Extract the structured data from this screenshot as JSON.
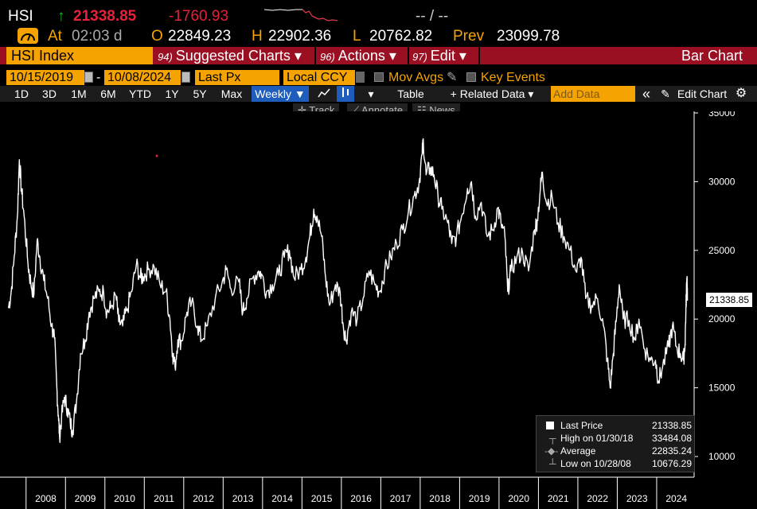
{
  "header": {
    "ticker": "HSI",
    "arrow": "↑",
    "last": "21338.85",
    "change": "-1760.93",
    "bidask": "-- / --",
    "at_label": "At",
    "time": "02:03 d",
    "open_label": "O",
    "open": "22849.23",
    "high_label": "H",
    "high": "22902.36",
    "low_label": "L",
    "low": "20762.82",
    "prev_label": "Prev",
    "prev": "23099.78"
  },
  "menubar": {
    "security": "HSI Index",
    "suggested_num": "94)",
    "suggested": "Suggested Charts",
    "actions_num": "96)",
    "actions": "Actions",
    "edit_num": "97)",
    "edit": "Edit",
    "title": "Bar Chart",
    "caret": "▾"
  },
  "settings": {
    "start_date": "10/15/2019",
    "dash": "-",
    "end_date": "10/08/2024",
    "field": "Last Px",
    "currency": "Local CCY",
    "mov_avgs": "Mov Avgs",
    "key_events": "Key Events"
  },
  "toolbar": {
    "periods": [
      "1D",
      "3D",
      "1M",
      "6M",
      "YTD",
      "1Y",
      "5Y",
      "Max"
    ],
    "frequency": "Weekly ▼",
    "table": "Table",
    "related": "+ Related Data ▾",
    "add_data": "Add Data",
    "collapse": "«",
    "edit_chart": "Edit Chart",
    "gear": "⚙"
  },
  "subtoolbar": {
    "track": "Track",
    "annotate": "Annotate",
    "news": "News"
  },
  "legend": {
    "rows": [
      {
        "name": "Last Price",
        "value": "21338.85"
      },
      {
        "name": "High on 01/30/18",
        "value": "33484.08"
      },
      {
        "name": "Average",
        "value": "22835.24"
      },
      {
        "name": "Low on 10/28/08",
        "value": "10676.29"
      }
    ]
  },
  "last_marker": "21338.85",
  "chart_data": {
    "type": "line",
    "title": "",
    "xlabel": "",
    "ylabel": "",
    "ylim": [
      9000,
      35500
    ],
    "yticks": [
      10000,
      15000,
      20000,
      25000,
      30000,
      35000
    ],
    "xticks": [
      "2008",
      "2009",
      "2010",
      "2011",
      "2012",
      "2013",
      "2014",
      "2015",
      "2016",
      "2017",
      "2018",
      "2019",
      "2020",
      "2021",
      "2022",
      "2023",
      "2024"
    ],
    "grid": false,
    "color": "#ffffff",
    "series": [
      {
        "values": [
          [
            2007.55,
            20800
          ],
          [
            2007.62,
            21900
          ],
          [
            2007.7,
            24600
          ],
          [
            2007.78,
            27500
          ],
          [
            2007.83,
            31600
          ],
          [
            2007.88,
            29500
          ],
          [
            2007.95,
            27500
          ],
          [
            2008.05,
            24000
          ],
          [
            2008.12,
            22600
          ],
          [
            2008.2,
            21800
          ],
          [
            2008.28,
            25700
          ],
          [
            2008.35,
            24500
          ],
          [
            2008.45,
            22800
          ],
          [
            2008.55,
            21500
          ],
          [
            2008.65,
            19500
          ],
          [
            2008.72,
            18600
          ],
          [
            2008.78,
            15000
          ],
          [
            2008.82,
            13000
          ],
          [
            2008.85,
            11500
          ],
          [
            2008.9,
            12800
          ],
          [
            2008.97,
            14300
          ],
          [
            2009.05,
            13500
          ],
          [
            2009.12,
            12500
          ],
          [
            2009.18,
            11900
          ],
          [
            2009.28,
            14000
          ],
          [
            2009.38,
            17500
          ],
          [
            2009.5,
            18500
          ],
          [
            2009.6,
            20500
          ],
          [
            2009.72,
            21500
          ],
          [
            2009.85,
            22000
          ],
          [
            2009.97,
            21900
          ],
          [
            2010.05,
            20500
          ],
          [
            2010.15,
            20800
          ],
          [
            2010.28,
            21700
          ],
          [
            2010.35,
            19800
          ],
          [
            2010.45,
            19500
          ],
          [
            2010.55,
            20600
          ],
          [
            2010.68,
            22000
          ],
          [
            2010.8,
            24000
          ],
          [
            2010.9,
            23000
          ],
          [
            2010.97,
            23100
          ],
          [
            2011.1,
            23600
          ],
          [
            2011.25,
            23800
          ],
          [
            2011.4,
            22500
          ],
          [
            2011.55,
            22000
          ],
          [
            2011.65,
            20000
          ],
          [
            2011.72,
            17500
          ],
          [
            2011.78,
            16500
          ],
          [
            2011.85,
            18500
          ],
          [
            2011.95,
            18400
          ],
          [
            2012.08,
            20500
          ],
          [
            2012.2,
            21200
          ],
          [
            2012.35,
            19500
          ],
          [
            2012.45,
            18500
          ],
          [
            2012.6,
            19500
          ],
          [
            2012.8,
            21500
          ],
          [
            2012.97,
            22600
          ],
          [
            2013.08,
            23600
          ],
          [
            2013.2,
            22200
          ],
          [
            2013.4,
            22700
          ],
          [
            2013.5,
            20500
          ],
          [
            2013.6,
            21500
          ],
          [
            2013.75,
            23000
          ],
          [
            2013.9,
            23500
          ],
          [
            2013.97,
            23300
          ],
          [
            2014.1,
            22000
          ],
          [
            2014.25,
            22500
          ],
          [
            2014.4,
            23200
          ],
          [
            2014.55,
            24500
          ],
          [
            2014.68,
            25000
          ],
          [
            2014.8,
            23000
          ],
          [
            2014.97,
            23600
          ],
          [
            2015.1,
            24500
          ],
          [
            2015.2,
            26000
          ],
          [
            2015.3,
            28000
          ],
          [
            2015.38,
            27500
          ],
          [
            2015.5,
            26000
          ],
          [
            2015.6,
            23000
          ],
          [
            2015.7,
            21000
          ],
          [
            2015.85,
            22500
          ],
          [
            2015.97,
            21900
          ],
          [
            2016.05,
            19500
          ],
          [
            2016.12,
            18500
          ],
          [
            2016.25,
            20500
          ],
          [
            2016.4,
            20000
          ],
          [
            2016.55,
            21500
          ],
          [
            2016.7,
            23500
          ],
          [
            2016.85,
            22500
          ],
          [
            2016.97,
            22000
          ],
          [
            2017.1,
            23500
          ],
          [
            2017.25,
            24500
          ],
          [
            2017.4,
            25500
          ],
          [
            2017.55,
            26500
          ],
          [
            2017.7,
            27800
          ],
          [
            2017.85,
            29000
          ],
          [
            2017.97,
            29900
          ],
          [
            2018.05,
            32000
          ],
          [
            2018.08,
            33000
          ],
          [
            2018.15,
            30500
          ],
          [
            2018.25,
            31000
          ],
          [
            2018.35,
            30500
          ],
          [
            2018.45,
            29000
          ],
          [
            2018.55,
            28000
          ],
          [
            2018.7,
            27000
          ],
          [
            2018.8,
            25500
          ],
          [
            2018.92,
            26000
          ],
          [
            2019.05,
            27500
          ],
          [
            2019.2,
            29500
          ],
          [
            2019.3,
            30000
          ],
          [
            2019.4,
            27500
          ],
          [
            2019.55,
            28500
          ],
          [
            2019.7,
            26000
          ],
          [
            2019.85,
            26500
          ],
          [
            2019.97,
            28100
          ],
          [
            2020.05,
            27000
          ],
          [
            2020.15,
            26000
          ],
          [
            2020.22,
            22000
          ],
          [
            2020.3,
            23500
          ],
          [
            2020.45,
            24500
          ],
          [
            2020.6,
            24800
          ],
          [
            2020.75,
            23500
          ],
          [
            2020.9,
            26500
          ],
          [
            2020.97,
            27200
          ],
          [
            2021.05,
            29500
          ],
          [
            2021.1,
            30700
          ],
          [
            2021.2,
            28500
          ],
          [
            2021.35,
            28800
          ],
          [
            2021.5,
            27000
          ],
          [
            2021.65,
            26000
          ],
          [
            2021.8,
            25000
          ],
          [
            2021.97,
            23400
          ],
          [
            2022.08,
            24500
          ],
          [
            2022.2,
            21500
          ],
          [
            2022.35,
            21000
          ],
          [
            2022.5,
            21500
          ],
          [
            2022.65,
            19500
          ],
          [
            2022.75,
            17000
          ],
          [
            2022.82,
            15000
          ],
          [
            2022.9,
            17500
          ],
          [
            2022.97,
            19800
          ],
          [
            2023.05,
            22500
          ],
          [
            2023.15,
            20000
          ],
          [
            2023.3,
            19900
          ],
          [
            2023.45,
            18500
          ],
          [
            2023.55,
            20000
          ],
          [
            2023.7,
            17800
          ],
          [
            2023.85,
            17000
          ],
          [
            2023.97,
            17000
          ],
          [
            2024.05,
            15500
          ],
          [
            2024.15,
            16500
          ],
          [
            2024.3,
            18000
          ],
          [
            2024.4,
            19500
          ],
          [
            2024.5,
            18000
          ],
          [
            2024.6,
            17500
          ],
          [
            2024.68,
            17000
          ],
          [
            2024.72,
            18200
          ],
          [
            2024.74,
            20500
          ],
          [
            2024.76,
            22500
          ],
          [
            2024.77,
            23100
          ],
          [
            2024.78,
            21338.85
          ]
        ]
      }
    ]
  }
}
